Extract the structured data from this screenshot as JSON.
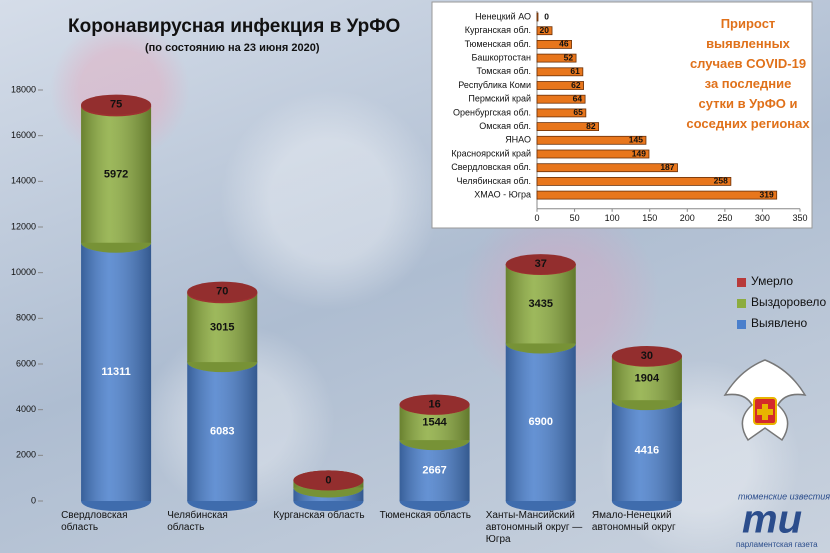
{
  "chart_data": [
    {
      "type": "bar",
      "stacked": true,
      "title": "Коронавирусная инфекция в УрФО",
      "subtitle": "(по состоянию на 23 июня 2020)",
      "categories": [
        "Свердловская область",
        "Челябинская область",
        "Курганская область",
        "Тюменская область",
        "Ханты-Мансийский автономный округ — Югра",
        "Ямало-Ненецкий автономный округ"
      ],
      "series": [
        {
          "name": "Выявлено",
          "color": "#4a7fcc",
          "values": [
            11311,
            6083,
            591,
            2667,
            6900,
            4416
          ]
        },
        {
          "name": "Выздоровело",
          "color": "#8cac3f",
          "values": [
            5972,
            3015,
            312,
            1544,
            3435,
            1904
          ]
        },
        {
          "name": "Умерло",
          "color": "#b83a3a",
          "values": [
            75,
            70,
            0,
            16,
            37,
            30
          ]
        }
      ],
      "ylim": [
        0,
        18000
      ],
      "yticks": [
        0,
        2000,
        4000,
        6000,
        8000,
        10000,
        12000,
        14000,
        16000,
        18000
      ],
      "legend": "right"
    },
    {
      "type": "bar",
      "orientation": "horizontal",
      "title": "Прирост выявленных случаев COVID-19 за последние сутки в УрФО и соседних регионах",
      "categories": [
        "Ненецкий АО",
        "Курганская обл.",
        "Тюменская обл.",
        "Башкортостан",
        "Томская обл.",
        "Республика Коми",
        "Пермский край",
        "Оренбургская обл.",
        "Омская обл.",
        "ЯНАО",
        "Красноярский край",
        "Свердловская обл.",
        "Челябинская обл.",
        "ХМАО - Югра"
      ],
      "values": [
        0,
        20,
        46,
        52,
        61,
        62,
        64,
        65,
        82,
        145,
        149,
        187,
        258,
        319
      ],
      "color": "#e8761c",
      "xlim": [
        0,
        350
      ],
      "xticks": [
        0,
        50,
        100,
        150,
        200,
        250,
        300,
        350
      ]
    }
  ],
  "logo": {
    "top": "тюменские известия",
    "mark": "ти",
    "bottom": "парламентская газета"
  }
}
